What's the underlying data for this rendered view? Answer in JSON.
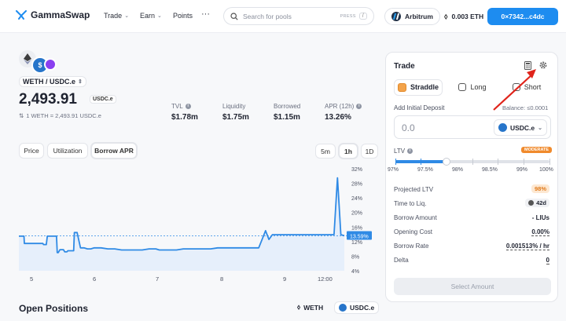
{
  "brand": {
    "name": "GammaSwap"
  },
  "nav": {
    "trade": "Trade",
    "earn": "Earn",
    "points": "Points",
    "more": "···"
  },
  "search": {
    "placeholder": "Search for pools",
    "press": "PRESS",
    "key": "/"
  },
  "network": {
    "label": "Arbitrum"
  },
  "balance": {
    "label": "0.003 ETH"
  },
  "wallet": {
    "address": "0×7342...c4dc"
  },
  "pool": {
    "pair": "WETH / USDC.e",
    "price": "2,493.91",
    "price_unit": "USDC.e",
    "rate": "1 WETH = 2,493.91 USDC.e"
  },
  "stats": [
    {
      "label": "TVL",
      "value": "$1.78m"
    },
    {
      "label": "Liquidity",
      "value": "$1.75m"
    },
    {
      "label": "Borrowed",
      "value": "$1.15m"
    },
    {
      "label": "APR (12h)",
      "value": "13.26%"
    }
  ],
  "chart_tabs": {
    "price": "Price",
    "utilization": "Utilization",
    "borrow_apr": "Borrow APR",
    "selected": "Borrow APR"
  },
  "range_tabs": {
    "r5m": "5m",
    "r1h": "1h",
    "r1d": "1D",
    "selected": "1h"
  },
  "chart_data": {
    "type": "line",
    "ylim": [
      4,
      32
    ],
    "y_ticks": [
      "32%",
      "28%",
      "24%",
      "20%",
      "16%",
      "12%",
      "8%",
      "4%"
    ],
    "x_ticks": [
      "5",
      "6",
      "7",
      "8",
      "9",
      "12:00"
    ],
    "current_label": "13.59%",
    "reference_line": 13.59,
    "color": "#2f8ae5",
    "x": [
      0,
      1.5,
      1.6,
      7,
      7.2,
      8,
      8.3,
      11,
      11.2,
      11.5,
      12,
      13,
      13.4,
      14,
      14.3,
      16,
      16.2,
      17,
      18,
      19,
      20,
      21,
      22,
      24,
      26,
      28,
      30,
      32,
      34,
      36,
      38,
      40,
      41,
      42,
      43,
      44,
      46,
      48,
      50,
      52,
      54,
      56,
      58,
      60,
      62,
      64,
      66,
      68,
      70,
      71,
      72,
      73,
      74,
      76,
      78,
      80,
      82,
      84,
      86,
      88,
      90,
      91,
      92,
      93,
      94,
      95
    ],
    "y": [
      13.5,
      13.5,
      11.5,
      11.5,
      11.2,
      11.2,
      13.5,
      13.5,
      9,
      9,
      9.8,
      9.8,
      9.2,
      9.2,
      9.5,
      9.5,
      14.5,
      14.5,
      10.3,
      10.3,
      10,
      10,
      10.3,
      10.3,
      10,
      10,
      9.7,
      9.7,
      9.7,
      9.7,
      10,
      10,
      9.7,
      9.7,
      9.7,
      9.7,
      9.7,
      10,
      10,
      10,
      10,
      10,
      10.3,
      10.3,
      10.3,
      10.3,
      10.3,
      10.3,
      10.3,
      12.6,
      15,
      12.6,
      13.9,
      13.9,
      13.9,
      13.9,
      13.9,
      13.9,
      13.9,
      13.9,
      13.9,
      13.9,
      13.9,
      29.5,
      13.9,
      13.6
    ]
  },
  "positions": {
    "title": "Open Positions",
    "token_a": "WETH",
    "token_b": "USDC.e"
  },
  "trade": {
    "title": "Trade",
    "modes": {
      "straddle": "Straddle",
      "long": "Long",
      "short": "Short",
      "selected": "Straddle"
    },
    "deposit_label": "Add Initial Deposit",
    "balance_label": "Balance: ≤0.0001",
    "amount": "0.0",
    "token": "USDC.e",
    "ltv_label": "LTV",
    "ltv_badge": "MODERATE",
    "ltv_ticks": [
      "97%",
      "97.5%",
      "98%",
      "98.5%",
      "99%",
      "100%"
    ],
    "ltv_value": 98,
    "rows": [
      {
        "label": "Projected LTV",
        "value": "98%"
      },
      {
        "label": "Time to Liq.",
        "value": "42d"
      },
      {
        "label": "Borrow Amount",
        "value": "- LIUs"
      },
      {
        "label": "Opening Cost",
        "value": "0.00%"
      },
      {
        "label": "Borrow Rate",
        "value": "0.001513% / hr"
      },
      {
        "label": "Delta",
        "value": "0"
      }
    ],
    "submit": "Select Amount"
  },
  "colors": {
    "accent": "#1d8cf0",
    "orange": "#f08a2c",
    "line": "#2f8ae5",
    "arrow": "#e0241b"
  }
}
